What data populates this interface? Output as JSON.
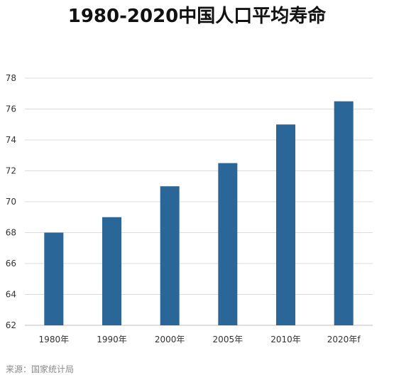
{
  "chart_data": {
    "type": "bar",
    "title": "1980-2020中国人口平均寿命",
    "xlabel": "",
    "ylabel": "",
    "categories": [
      "1980年",
      "1990年",
      "2000年",
      "2005年",
      "2010年",
      "2020年f"
    ],
    "values": [
      68,
      69,
      71,
      72.5,
      75,
      76.5
    ],
    "ylim": [
      62,
      78
    ],
    "yticks": [
      62,
      64,
      66,
      68,
      70,
      72,
      74,
      76,
      78
    ],
    "grid": true,
    "bar_color": "#2b6699"
  },
  "source": "来源：国家统计局"
}
